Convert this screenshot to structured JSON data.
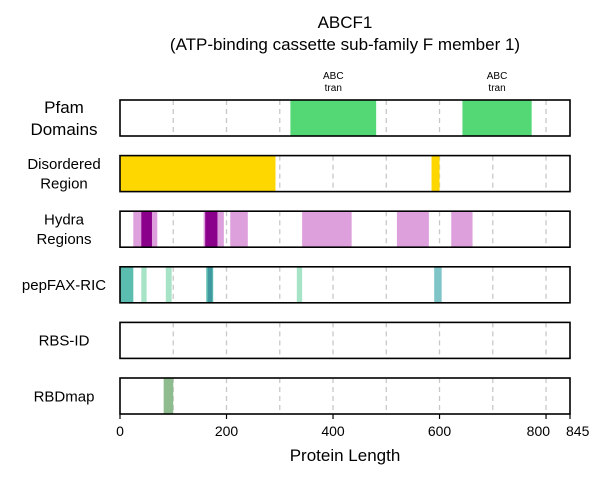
{
  "chart_data": {
    "type": "bar",
    "title": "ABCF1",
    "subtitle": "(ATP-binding cassette sub-family F member 1)",
    "xlabel": "Protein Length",
    "xlim": [
      0,
      845
    ],
    "xticks": [
      0,
      200,
      400,
      600,
      800,
      845
    ],
    "grid": "vertical dashed",
    "tracks": [
      {
        "label_lines": [
          "Pfam",
          "Domains"
        ],
        "segments": [
          {
            "start": 320,
            "end": 481,
            "color": "#54d876",
            "label": "ABC tran"
          },
          {
            "start": 643,
            "end": 773,
            "color": "#54d876",
            "label": "ABC tran"
          }
        ]
      },
      {
        "label_lines": [
          "Disordered",
          "Region"
        ],
        "segments": [
          {
            "start": 0,
            "end": 292,
            "color": "#ffd700"
          },
          {
            "start": 585,
            "end": 600,
            "color": "#ffd700"
          }
        ]
      },
      {
        "label_lines": [
          "Hydra",
          "Regions"
        ],
        "segments": [
          {
            "start": 25,
            "end": 70,
            "color": "#dda0dd"
          },
          {
            "start": 40,
            "end": 60,
            "color": "#8b008b"
          },
          {
            "start": 157,
            "end": 195,
            "color": "#dda0dd"
          },
          {
            "start": 160,
            "end": 183,
            "color": "#8b008b"
          },
          {
            "start": 207,
            "end": 240,
            "color": "#dda0dd"
          },
          {
            "start": 342,
            "end": 435,
            "color": "#dda0dd"
          },
          {
            "start": 520,
            "end": 580,
            "color": "#dda0dd"
          },
          {
            "start": 622,
            "end": 662,
            "color": "#dda0dd"
          }
        ]
      },
      {
        "label_lines": [
          "pepFAX-RIC"
        ],
        "segments": [
          {
            "start": 0,
            "end": 25,
            "color": "#5bbcb0"
          },
          {
            "start": 40,
            "end": 50,
            "color": "#a7e3c6"
          },
          {
            "start": 86,
            "end": 97,
            "color": "#a7e3c6"
          },
          {
            "start": 162,
            "end": 175,
            "color": "#5bbcb0"
          },
          {
            "start": 165,
            "end": 173,
            "color": "#3f9aa0"
          },
          {
            "start": 332,
            "end": 342,
            "color": "#a7e3c6"
          },
          {
            "start": 590,
            "end": 604,
            "color": "#7fc4c6"
          }
        ]
      },
      {
        "label_lines": [
          "RBS-ID"
        ],
        "segments": []
      },
      {
        "label_lines": [
          "RBDmap"
        ],
        "segments": [
          {
            "start": 82,
            "end": 100,
            "color": "#8fbc8f"
          }
        ]
      }
    ]
  }
}
